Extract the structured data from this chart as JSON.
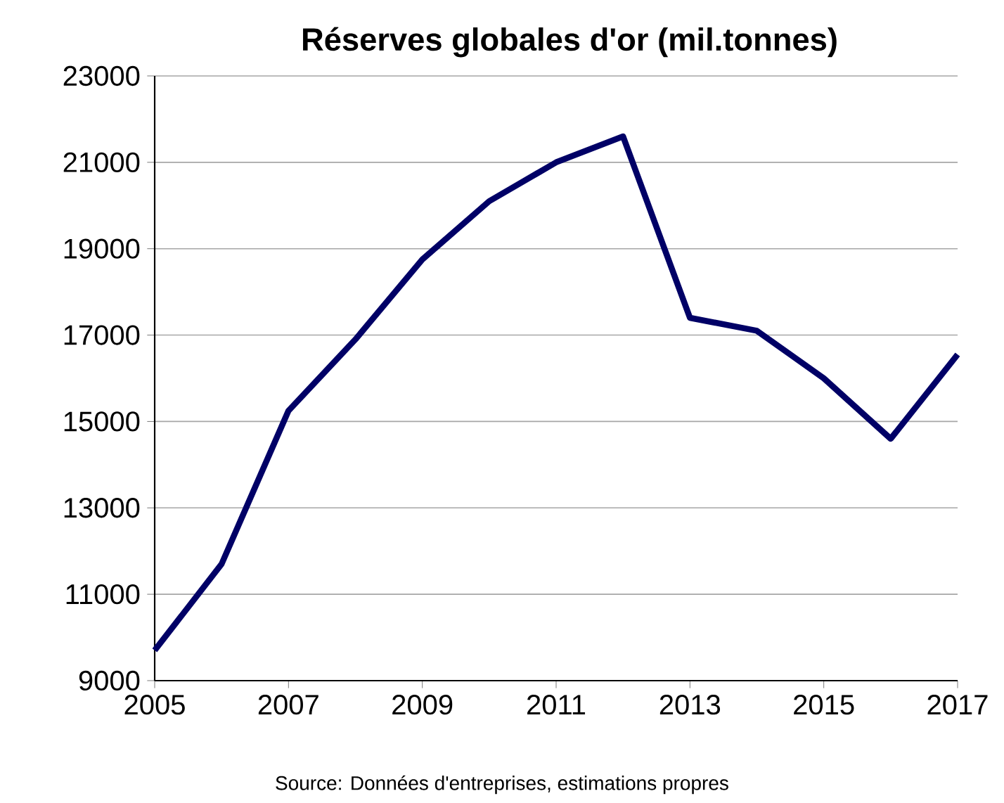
{
  "chart_data": {
    "type": "line",
    "title": "Réserves globales d'or (mil.tonnes)",
    "x": [
      2005,
      2006,
      2007,
      2008,
      2009,
      2010,
      2011,
      2012,
      2013,
      2014,
      2015,
      2016,
      2017
    ],
    "values": [
      9700,
      11700,
      15250,
      16900,
      18750,
      20100,
      21000,
      21600,
      17400,
      17100,
      16000,
      14600,
      16550
    ],
    "color": "#000066",
    "xlim": [
      2005,
      2017
    ],
    "xticks": [
      2005,
      2007,
      2009,
      2011,
      2013,
      2015,
      2017
    ],
    "ylim": [
      9000,
      23000
    ],
    "yticks": [
      9000,
      11000,
      13000,
      15000,
      17000,
      19000,
      21000,
      23000
    ],
    "grid": "y",
    "annotations": [
      "Source: Données d'entreprises, estimations propres"
    ]
  }
}
